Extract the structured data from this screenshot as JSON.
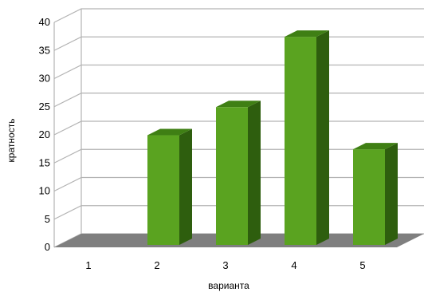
{
  "chart_data": {
    "type": "bar",
    "categories": [
      "1",
      "2",
      "3",
      "4",
      "5"
    ],
    "values": [
      0,
      19.5,
      24.5,
      37,
      17
    ],
    "ylim": [
      0,
      40
    ],
    "yticks": [
      "0",
      "5",
      "10",
      "15",
      "20",
      "25",
      "30",
      "35",
      "40"
    ],
    "xlabel": "варианта",
    "ylabel": "кратность",
    "grid": true,
    "three_d": true
  },
  "colors": {
    "bar_front": "#5aa320",
    "bar_top": "#3f7f14",
    "bar_side": "#2e5e0e",
    "floor": "#7f7f7f",
    "grid": "#b3b3b3"
  }
}
